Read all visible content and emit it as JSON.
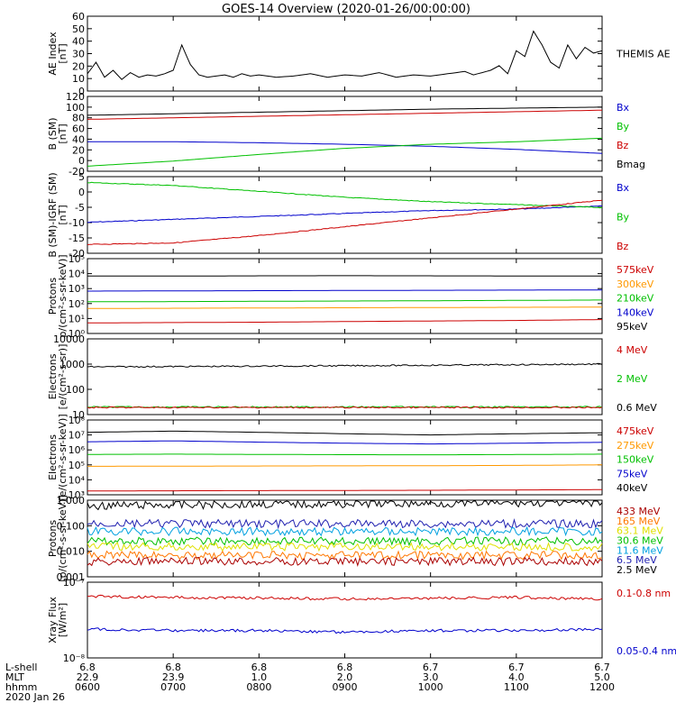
{
  "title": "GOES-14 Overview (2020-01-26/00:00:00)",
  "xaxis": {
    "row_labels": [
      "L-shell",
      "MLT",
      "hhmm",
      "2020 Jan 26"
    ],
    "ticks": [
      {
        "lshell": "6.8",
        "mlt": "22.9",
        "hhmm": "0600"
      },
      {
        "lshell": "6.8",
        "mlt": "23.9",
        "hhmm": "0700"
      },
      {
        "lshell": "6.8",
        "mlt": "1.0",
        "hhmm": "0800"
      },
      {
        "lshell": "6.8",
        "mlt": "2.0",
        "hhmm": "0900"
      },
      {
        "lshell": "6.7",
        "mlt": "3.0",
        "hhmm": "1000"
      },
      {
        "lshell": "6.7",
        "mlt": "4.0",
        "hhmm": "1100"
      },
      {
        "lshell": "6.7",
        "mlt": "5.0",
        "hhmm": "1200"
      }
    ]
  },
  "chart_data": [
    {
      "type": "line",
      "id": "ae",
      "ylabel": [
        "AE Index",
        "[nT]"
      ],
      "ylim": [
        0,
        65
      ],
      "yticks": [
        "0",
        "10",
        "20",
        "30",
        "40",
        "50",
        "60"
      ],
      "log": false,
      "series": [
        {
          "name": "THEMIS AE",
          "color": "#000000",
          "x_hours": [
            6.0,
            6.1,
            6.2,
            6.3,
            6.4,
            6.5,
            6.6,
            6.7,
            6.8,
            6.9,
            7.0,
            7.1,
            7.2,
            7.3,
            7.4,
            7.5,
            7.6,
            7.7,
            7.8,
            7.9,
            8.0,
            8.2,
            8.4,
            8.6,
            8.8,
            9.0,
            9.2,
            9.4,
            9.6,
            9.8,
            10.0,
            10.2,
            10.4,
            10.5,
            10.6,
            10.7,
            10.8,
            10.9,
            11.0,
            11.1,
            11.2,
            11.3,
            11.4,
            11.5,
            11.6,
            11.7,
            11.8,
            11.9,
            12.0
          ],
          "values": [
            15,
            25,
            12,
            18,
            10,
            16,
            12,
            14,
            13,
            15,
            18,
            40,
            23,
            14,
            12,
            13,
            14,
            12,
            15,
            13,
            14,
            12,
            13,
            15,
            12,
            14,
            13,
            16,
            12,
            14,
            13,
            15,
            17,
            14,
            16,
            18,
            22,
            15,
            35,
            30,
            52,
            40,
            25,
            20,
            40,
            28,
            38,
            33,
            35
          ]
        }
      ],
      "labels_right": [
        {
          "text": "THEMIS AE",
          "color": "#000000"
        }
      ]
    },
    {
      "type": "line",
      "id": "bsm",
      "ylabel": [
        "B (SM)",
        "[nT]"
      ],
      "ylim": [
        -25,
        122
      ],
      "yticks": [
        "-20",
        "0",
        "20",
        "40",
        "60",
        "80",
        "100",
        "120"
      ],
      "log": false,
      "series": [
        {
          "name": "Bmag",
          "color": "#000000",
          "x_hours": [
            6,
            7,
            8,
            9,
            10,
            11,
            12
          ],
          "values": [
            85,
            88,
            91,
            94,
            97,
            99,
            101
          ]
        },
        {
          "name": "Bx",
          "color": "#0000cc",
          "x_hours": [
            6,
            7,
            8,
            9,
            10,
            11,
            12
          ],
          "values": [
            33,
            33,
            31,
            28,
            24,
            18,
            10
          ]
        },
        {
          "name": "By",
          "color": "#00c000",
          "x_hours": [
            6,
            7,
            8,
            9,
            10,
            11,
            12
          ],
          "values": [
            -15,
            -5,
            8,
            20,
            28,
            33,
            40
          ]
        },
        {
          "name": "Bz",
          "color": "#cc0000",
          "x_hours": [
            6,
            7,
            8,
            9,
            10,
            11,
            12
          ],
          "values": [
            77,
            80,
            83,
            86,
            89,
            92,
            95
          ]
        }
      ],
      "labels_right": [
        {
          "text": "Bx",
          "color": "#0000cc"
        },
        {
          "text": "By",
          "color": "#00c000"
        },
        {
          "text": "Bz",
          "color": "#cc0000"
        },
        {
          "text": "Bmag",
          "color": "#000000"
        }
      ]
    },
    {
      "type": "line",
      "id": "bigrf",
      "ylabel": [
        "B (SM)-IGRF (SM)",
        "[nT]"
      ],
      "ylim": [
        -20,
        6
      ],
      "yticks": [
        "-20",
        "-15",
        "-10",
        "-5",
        "0",
        "5"
      ],
      "log": false,
      "series": [
        {
          "name": "Bx",
          "color": "#0000cc",
          "x_hours": [
            6,
            7,
            8,
            9,
            10,
            11,
            12
          ],
          "values": [
            -9.5,
            -8.5,
            -7.5,
            -6.5,
            -5.5,
            -5,
            -4
          ]
        },
        {
          "name": "By",
          "color": "#00c000",
          "x_hours": [
            6,
            7,
            8,
            9,
            10,
            11,
            12
          ],
          "values": [
            4,
            3,
            1,
            -1,
            -2.5,
            -3.5,
            -4.5
          ]
        },
        {
          "name": "Bz",
          "color": "#cc0000",
          "x_hours": [
            6,
            7,
            8,
            9,
            10,
            11,
            12
          ],
          "values": [
            -17,
            -16.5,
            -14,
            -11,
            -8,
            -5,
            -2
          ]
        }
      ],
      "labels_right": [
        {
          "text": "Bx",
          "color": "#0000cc"
        },
        {
          "text": "By",
          "color": "#00c000"
        },
        {
          "text": "Bz",
          "color": "#cc0000"
        }
      ]
    },
    {
      "type": "line",
      "id": "protons_kev",
      "ylabel": [
        "Protons",
        "p/(cm²-s-sr-keV)]"
      ],
      "ylim": [
        1,
        1000000
      ],
      "yticks": [
        "10⁰",
        "10¹",
        "10²",
        "10³",
        "10⁴",
        "10⁵"
      ],
      "log": true,
      "series": [
        {
          "name": "575keV",
          "color": "#000000",
          "x_hours": [
            6,
            7,
            8,
            9,
            10,
            11,
            12
          ],
          "values": [
            40000,
            40000,
            42000,
            43000,
            42000,
            41000,
            40000
          ]
        },
        {
          "name": "300keV",
          "color": "#0000cc",
          "x_hours": [
            6,
            7,
            8,
            9,
            10,
            11,
            12
          ],
          "values": [
            2500,
            2600,
            2700,
            2800,
            2900,
            3000,
            3100
          ]
        },
        {
          "name": "210keV",
          "color": "#00c000",
          "x_hours": [
            6,
            7,
            8,
            9,
            10,
            11,
            12
          ],
          "values": [
            350,
            360,
            380,
            400,
            420,
            450,
            480
          ]
        },
        {
          "name": "140keV",
          "color": "#ff9900",
          "x_hours": [
            6,
            7,
            8,
            9,
            10,
            11,
            12
          ],
          "values": [
            100,
            105,
            110,
            115,
            120,
            125,
            130
          ]
        },
        {
          "name": "95keV",
          "color": "#cc0000",
          "x_hours": [
            6,
            7,
            8,
            9,
            10,
            11,
            12
          ],
          "values": [
            7,
            7.5,
            8,
            9,
            10,
            11,
            13
          ]
        }
      ],
      "labels_right": [
        {
          "text": "575keV",
          "color": "#cc0000"
        },
        {
          "text": "300keV",
          "color": "#ff9900"
        },
        {
          "text": "210keV",
          "color": "#00c000"
        },
        {
          "text": "140keV",
          "color": "#0000cc"
        },
        {
          "text": "95keV",
          "color": "#000000"
        }
      ]
    },
    {
      "type": "line",
      "id": "electrons_mev",
      "ylabel": [
        "Electrons",
        "[e/(cm²-s-sr)]"
      ],
      "ylim": [
        10,
        10000
      ],
      "yticks": [
        "10",
        "100",
        "1000",
        "10000"
      ],
      "log": true,
      "series": [
        {
          "name": "0.6 MeV",
          "color": "#000000",
          "x_hours": [
            6,
            7,
            8,
            9,
            10,
            11,
            12
          ],
          "values": [
            780,
            800,
            830,
            860,
            900,
            950,
            1000
          ]
        },
        {
          "name": "2 MeV",
          "color": "#00c000",
          "x_hours": [
            6,
            7,
            8,
            9,
            10,
            11,
            12
          ],
          "values": [
            20,
            20,
            20,
            20,
            20,
            20,
            20
          ]
        },
        {
          "name": "4 MeV",
          "color": "#cc0000",
          "x_hours": [
            6,
            7,
            8,
            9,
            10,
            11,
            12
          ],
          "values": [
            19,
            19,
            19,
            19,
            19,
            19,
            19
          ]
        }
      ],
      "labels_right": [
        {
          "text": "4 MeV",
          "color": "#cc0000"
        },
        {
          "text": "2 MeV",
          "color": "#00c000"
        },
        {
          "text": "0.6 MeV",
          "color": "#000000"
        }
      ]
    },
    {
      "type": "line",
      "id": "electrons_kev",
      "ylabel": [
        "Electrons",
        "[e/(cm²-s-sr-keV)]"
      ],
      "ylim": [
        1000,
        100000000
      ],
      "yticks": [
        "10³",
        "10⁴",
        "10⁵",
        "10⁶",
        "10⁷",
        "10⁸"
      ],
      "log": true,
      "series": [
        {
          "name": "40keV",
          "color": "#000000",
          "x_hours": [
            6,
            7,
            8,
            9,
            10,
            11,
            12
          ],
          "values": [
            15000000,
            18000000,
            15000000,
            12000000,
            10000000,
            12000000,
            14000000
          ]
        },
        {
          "name": "75keV",
          "color": "#0000cc",
          "x_hours": [
            6,
            7,
            8,
            9,
            10,
            11,
            12
          ],
          "values": [
            3500000,
            4000000,
            3300000,
            2800000,
            2500000,
            2800000,
            3200000
          ]
        },
        {
          "name": "150keV",
          "color": "#00c000",
          "x_hours": [
            6,
            7,
            8,
            9,
            10,
            11,
            12
          ],
          "values": [
            500000,
            520000,
            500000,
            480000,
            470000,
            490000,
            520000
          ]
        },
        {
          "name": "275keV",
          "color": "#ff9900",
          "x_hours": [
            6,
            7,
            8,
            9,
            10,
            11,
            12
          ],
          "values": [
            80000,
            82000,
            84000,
            86000,
            88000,
            92000,
            100000
          ]
        },
        {
          "name": "475keV",
          "color": "#cc0000",
          "x_hours": [
            6,
            7,
            8,
            9,
            10,
            11,
            12
          ],
          "values": [
            1800,
            1850,
            1900,
            1950,
            2000,
            2100,
            2200
          ]
        }
      ],
      "labels_right": [
        {
          "text": "475keV",
          "color": "#cc0000"
        },
        {
          "text": "275keV",
          "color": "#ff9900"
        },
        {
          "text": "150keV",
          "color": "#00c000"
        },
        {
          "text": "75keV",
          "color": "#0000cc"
        },
        {
          "text": "40keV",
          "color": "#000000"
        }
      ]
    },
    {
      "type": "line",
      "id": "protons_mev",
      "ylabel": [
        "Protons",
        "[p/(cm²-s-sr-keV)]"
      ],
      "ylim": [
        0.001,
        1.0
      ],
      "yticks": [
        "0.001",
        "0.010",
        "0.100",
        "1.000"
      ],
      "log": true,
      "series": [
        {
          "name": "433 MeV",
          "color": "#000000",
          "x_hours": [
            6,
            7,
            8,
            9,
            10,
            11,
            12
          ],
          "values": [
            0.6,
            0.65,
            0.7,
            0.72,
            0.75,
            0.78,
            0.8
          ]
        },
        {
          "name": "165 MeV",
          "color": "#2020b0",
          "x_hours": [
            6,
            7,
            8,
            9,
            10,
            11,
            12
          ],
          "values": [
            0.12,
            0.12,
            0.12,
            0.12,
            0.12,
            0.12,
            0.12
          ]
        },
        {
          "name": "63.1 MeV",
          "color": "#00a0e0",
          "x_hours": [
            6,
            7,
            8,
            9,
            10,
            11,
            12
          ],
          "values": [
            0.06,
            0.06,
            0.06,
            0.06,
            0.06,
            0.06,
            0.06
          ]
        },
        {
          "name": "30.6 MeV",
          "color": "#00c000",
          "x_hours": [
            6,
            7,
            8,
            9,
            10,
            11,
            12
          ],
          "values": [
            0.025,
            0.025,
            0.025,
            0.025,
            0.025,
            0.025,
            0.025
          ]
        },
        {
          "name": "11.6 MeV",
          "color": "#e0e000",
          "x_hours": [
            6,
            7,
            8,
            9,
            10,
            11,
            12
          ],
          "values": [
            0.015,
            0.015,
            0.015,
            0.015,
            0.015,
            0.015,
            0.015
          ]
        },
        {
          "name": "6.5 MeV",
          "color": "#ff7700",
          "x_hours": [
            6,
            7,
            8,
            9,
            10,
            11,
            12
          ],
          "values": [
            0.007,
            0.007,
            0.007,
            0.007,
            0.007,
            0.007,
            0.007
          ]
        },
        {
          "name": "2.5 MeV",
          "color": "#aa0000",
          "x_hours": [
            6,
            7,
            8,
            9,
            10,
            11,
            12
          ],
          "values": [
            0.004,
            0.004,
            0.004,
            0.004,
            0.004,
            0.004,
            0.004
          ]
        }
      ],
      "labels_right": [
        {
          "text": "433 MeV",
          "color": "#aa0000"
        },
        {
          "text": "165 MeV",
          "color": "#ff7700"
        },
        {
          "text": "63.1 MeV",
          "color": "#e0e000"
        },
        {
          "text": "30.6 MeV",
          "color": "#00c000"
        },
        {
          "text": "11.6 MeV",
          "color": "#00a0e0"
        },
        {
          "text": "6.5 MeV",
          "color": "#2020b0"
        },
        {
          "text": "2.5 MeV",
          "color": "#000000"
        }
      ]
    },
    {
      "type": "line",
      "id": "xray",
      "ylabel": [
        "Xray Flux",
        "[W/m²]"
      ],
      "ylim": [
        1e-08,
        1e-07
      ],
      "yticks": [
        "10⁻⁸",
        "10⁻⁷"
      ],
      "log": true,
      "series": [
        {
          "name": "0.1-0.8 nm",
          "color": "#cc0000",
          "x_hours": [
            6,
            7,
            8,
            9,
            10,
            11,
            12
          ],
          "values": [
            6.5e-08,
            6.3e-08,
            6.2e-08,
            6e-08,
            6.1e-08,
            6.3e-08,
            6e-08
          ]
        },
        {
          "name": "0.05-0.4 nm",
          "color": "#0000cc",
          "x_hours": [
            6,
            7,
            8,
            9,
            10,
            11,
            12
          ],
          "values": [
            2.4e-08,
            2.3e-08,
            2.3e-08,
            2.2e-08,
            2.3e-08,
            2.3e-08,
            2.4e-08
          ]
        }
      ],
      "labels_right": [
        {
          "text": "0.1-0.8 nm",
          "color": "#cc0000"
        },
        {
          "text": "0.05-0.4 nm",
          "color": "#0000cc"
        }
      ]
    }
  ]
}
